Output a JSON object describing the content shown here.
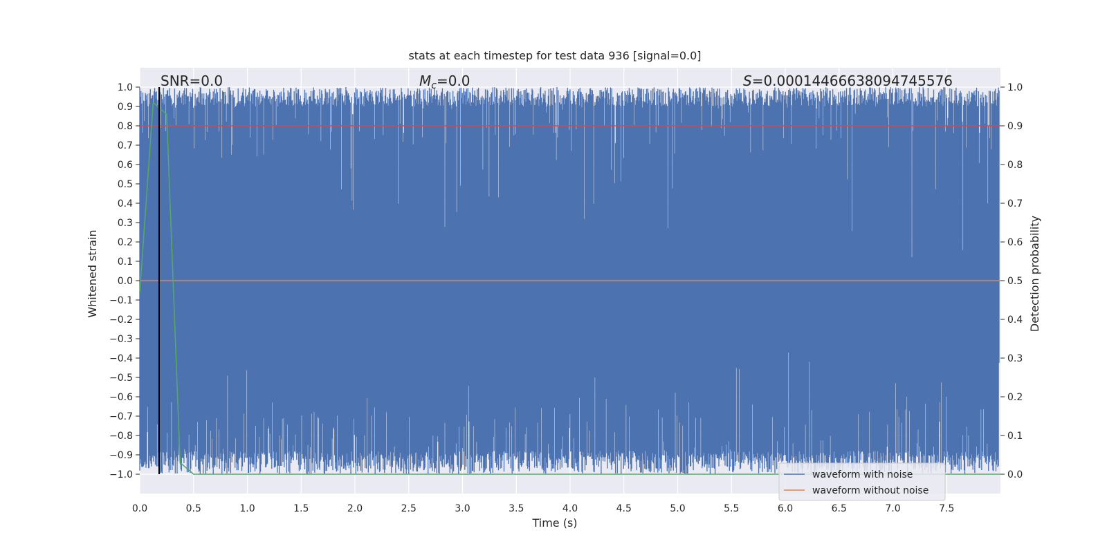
{
  "chart_data": {
    "type": "line",
    "title": "stats at each timestep for test data 936 [signal=0.0]",
    "xlabel": "Time (s)",
    "ylabel": "Whitened strain",
    "ylabel_right": "Detection probability",
    "xlim": [
      0.0,
      8.0
    ],
    "ylim": [
      -1.1,
      1.1
    ],
    "ylim_right": [
      -0.05,
      1.05
    ],
    "x_ticks": [
      "0.0",
      "0.5",
      "1.0",
      "1.5",
      "2.0",
      "2.5",
      "3.0",
      "3.5",
      "4.0",
      "4.5",
      "5.0",
      "5.5",
      "6.0",
      "6.5",
      "7.0",
      "7.5"
    ],
    "y_ticks": [
      "1.0",
      "0.9",
      "0.8",
      "0.7",
      "0.6",
      "0.5",
      "0.4",
      "0.3",
      "0.2",
      "0.1",
      "0.0",
      "−0.1",
      "−0.2",
      "−0.3",
      "−0.4",
      "−0.5",
      "−0.6",
      "−0.7",
      "−0.8",
      "−0.9",
      "−1.0"
    ],
    "y_ticks_right": [
      "1.0",
      "0.9",
      "0.8",
      "0.7",
      "0.6",
      "0.5",
      "0.4",
      "0.3",
      "0.2",
      "0.1",
      "0.0"
    ],
    "grid": true,
    "legend_position": "lower-right",
    "annotations": {
      "snr": "SNR=0.0",
      "mc_symbol": "M",
      "mc_sub": "c",
      "mc_value": "=0.0",
      "s_symbol": "S",
      "s_value": "=0.00014466638094745576"
    },
    "series": [
      {
        "name": "waveform with noise",
        "color": "#4c72b0",
        "description": "dense whitened strain noise spanning roughly -1.0 to 1.0"
      },
      {
        "name": "waveform without noise",
        "color": "#dd8452",
        "x": [
          0.0,
          8.0
        ],
        "y": [
          0.0,
          0.0
        ]
      },
      {
        "color": "#55a868",
        "axis": "right",
        "x": [
          0.0,
          0.125,
          0.25,
          0.375,
          0.5,
          8.0
        ],
        "y": [
          0.47,
          0.96,
          0.93,
          0.03,
          0.0,
          0.0
        ]
      },
      {
        "color": "#c44e52",
        "axis": "right",
        "x": [
          0.0,
          8.0
        ],
        "y": [
          0.9,
          0.9
        ]
      }
    ],
    "vline": {
      "x": 0.18,
      "color": "#000000"
    }
  }
}
